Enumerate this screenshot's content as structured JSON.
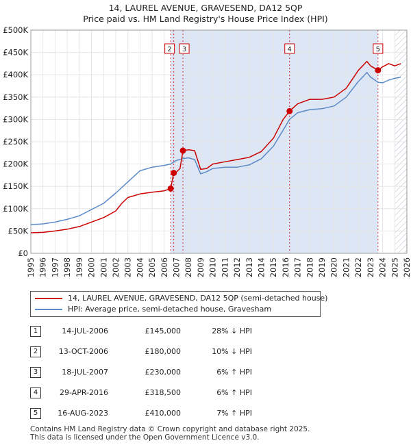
{
  "title_line1": "14, LAUREL AVENUE, GRAVESEND, DA12 5QP",
  "title_line2": "Price paid vs. HM Land Registry's House Price Index (HPI)",
  "chart_data": {
    "type": "line",
    "title": "14, LAUREL AVENUE, GRAVESEND, DA12 5QP - Price paid vs. HM Land Registry's House Price Index (HPI)",
    "xlabel": "",
    "ylabel": "",
    "xlim": [
      1995,
      2026
    ],
    "ylim": [
      0,
      500000
    ],
    "x_ticks": [
      1995,
      1996,
      1997,
      1998,
      1999,
      2000,
      2001,
      2002,
      2003,
      2004,
      2005,
      2006,
      2007,
      2008,
      2009,
      2010,
      2011,
      2012,
      2013,
      2014,
      2015,
      2016,
      2017,
      2018,
      2019,
      2020,
      2021,
      2022,
      2023,
      2024,
      2025,
      2026
    ],
    "y_ticks": [
      0,
      50000,
      100000,
      150000,
      200000,
      250000,
      300000,
      350000,
      400000,
      450000,
      500000
    ],
    "y_tick_labels": [
      "£0",
      "£50K",
      "£100K",
      "£150K",
      "£200K",
      "£250K",
      "£300K",
      "£350K",
      "£400K",
      "£450K",
      "£500K"
    ],
    "grid": true,
    "colors": {
      "property": "#cc0000",
      "hpi": "#5b8ac8",
      "shade": "#dce6f5",
      "hatch": "#b0b8c8"
    },
    "series": [
      {
        "name": "14, LAUREL AVENUE, GRAVESEND, DA12 5QP (semi-detached house)",
        "color": "#cc0000",
        "points": [
          [
            1995.0,
            46000
          ],
          [
            1996.0,
            47000
          ],
          [
            1997.0,
            50000
          ],
          [
            1998.0,
            54000
          ],
          [
            1999.0,
            60000
          ],
          [
            2000.0,
            70000
          ],
          [
            2001.0,
            80000
          ],
          [
            2002.0,
            95000
          ],
          [
            2002.5,
            112000
          ],
          [
            2003.0,
            125000
          ],
          [
            2004.0,
            133000
          ],
          [
            2005.0,
            137000
          ],
          [
            2006.0,
            140000
          ],
          [
            2006.53,
            145000
          ],
          [
            2006.78,
            180000
          ],
          [
            2007.0,
            182000
          ],
          [
            2007.3,
            190000
          ],
          [
            2007.54,
            230000
          ],
          [
            2008.0,
            232000
          ],
          [
            2008.5,
            230000
          ],
          [
            2009.0,
            188000
          ],
          [
            2009.5,
            190000
          ],
          [
            2010.0,
            200000
          ],
          [
            2011.0,
            205000
          ],
          [
            2012.0,
            210000
          ],
          [
            2013.0,
            215000
          ],
          [
            2014.0,
            228000
          ],
          [
            2015.0,
            258000
          ],
          [
            2015.8,
            300000
          ],
          [
            2016.33,
            318500
          ],
          [
            2017.0,
            335000
          ],
          [
            2018.0,
            345000
          ],
          [
            2019.0,
            345000
          ],
          [
            2020.0,
            350000
          ],
          [
            2021.0,
            370000
          ],
          [
            2022.0,
            410000
          ],
          [
            2022.7,
            430000
          ],
          [
            2023.0,
            420000
          ],
          [
            2023.62,
            410000
          ],
          [
            2024.0,
            418000
          ],
          [
            2024.5,
            425000
          ],
          [
            2025.0,
            420000
          ],
          [
            2025.5,
            425000
          ]
        ]
      },
      {
        "name": "HPI: Average price, semi-detached house, Gravesham",
        "color": "#5b8ac8",
        "points": [
          [
            1995.0,
            64000
          ],
          [
            1996.0,
            66000
          ],
          [
            1997.0,
            70000
          ],
          [
            1998.0,
            76000
          ],
          [
            1999.0,
            84000
          ],
          [
            2000.0,
            98000
          ],
          [
            2001.0,
            112000
          ],
          [
            2002.0,
            135000
          ],
          [
            2003.0,
            160000
          ],
          [
            2004.0,
            185000
          ],
          [
            2005.0,
            193000
          ],
          [
            2006.0,
            197000
          ],
          [
            2006.5,
            200000
          ],
          [
            2007.0,
            208000
          ],
          [
            2007.5,
            212000
          ],
          [
            2008.0,
            214000
          ],
          [
            2008.5,
            210000
          ],
          [
            2009.0,
            178000
          ],
          [
            2009.5,
            183000
          ],
          [
            2010.0,
            190000
          ],
          [
            2011.0,
            193000
          ],
          [
            2012.0,
            193000
          ],
          [
            2013.0,
            198000
          ],
          [
            2014.0,
            212000
          ],
          [
            2015.0,
            240000
          ],
          [
            2016.0,
            285000
          ],
          [
            2016.33,
            300000
          ],
          [
            2017.0,
            315000
          ],
          [
            2018.0,
            322000
          ],
          [
            2019.0,
            324000
          ],
          [
            2020.0,
            330000
          ],
          [
            2021.0,
            350000
          ],
          [
            2022.0,
            385000
          ],
          [
            2022.7,
            405000
          ],
          [
            2023.0,
            395000
          ],
          [
            2023.62,
            383000
          ],
          [
            2024.0,
            382000
          ],
          [
            2024.5,
            388000
          ],
          [
            2025.0,
            392000
          ],
          [
            2025.5,
            395000
          ]
        ]
      }
    ],
    "markers": [
      {
        "label": "1",
        "x": 2006.53,
        "y": 145000
      },
      {
        "label": "2",
        "x": 2006.78,
        "y": 180000
      },
      {
        "label": "3",
        "x": 2007.54,
        "y": 230000
      },
      {
        "label": "4",
        "x": 2016.33,
        "y": 318500
      },
      {
        "label": "5",
        "x": 2023.62,
        "y": 410000
      }
    ],
    "shaded_range": [
      2006.53,
      2023.62
    ],
    "hatched_from": 2025.0
  },
  "legend": {
    "property_label": "14, LAUREL AVENUE, GRAVESEND, DA12 5QP (semi-detached house)",
    "hpi_label": "HPI: Average price, semi-detached house, Gravesham"
  },
  "sales": [
    {
      "num": "1",
      "date": "14-JUL-2006",
      "price": "£145,000",
      "hpi": "28% ↓ HPI"
    },
    {
      "num": "2",
      "date": "13-OCT-2006",
      "price": "£180,000",
      "hpi": "10% ↓ HPI"
    },
    {
      "num": "3",
      "date": "18-JUL-2007",
      "price": "£230,000",
      "hpi": "6% ↑ HPI"
    },
    {
      "num": "4",
      "date": "29-APR-2016",
      "price": "£318,500",
      "hpi": "6% ↑ HPI"
    },
    {
      "num": "5",
      "date": "16-AUG-2023",
      "price": "£410,000",
      "hpi": "7% ↑ HPI"
    }
  ],
  "footer_line1": "Contains HM Land Registry data © Crown copyright and database right 2025.",
  "footer_line2": "This data is licensed under the Open Government Licence v3.0."
}
